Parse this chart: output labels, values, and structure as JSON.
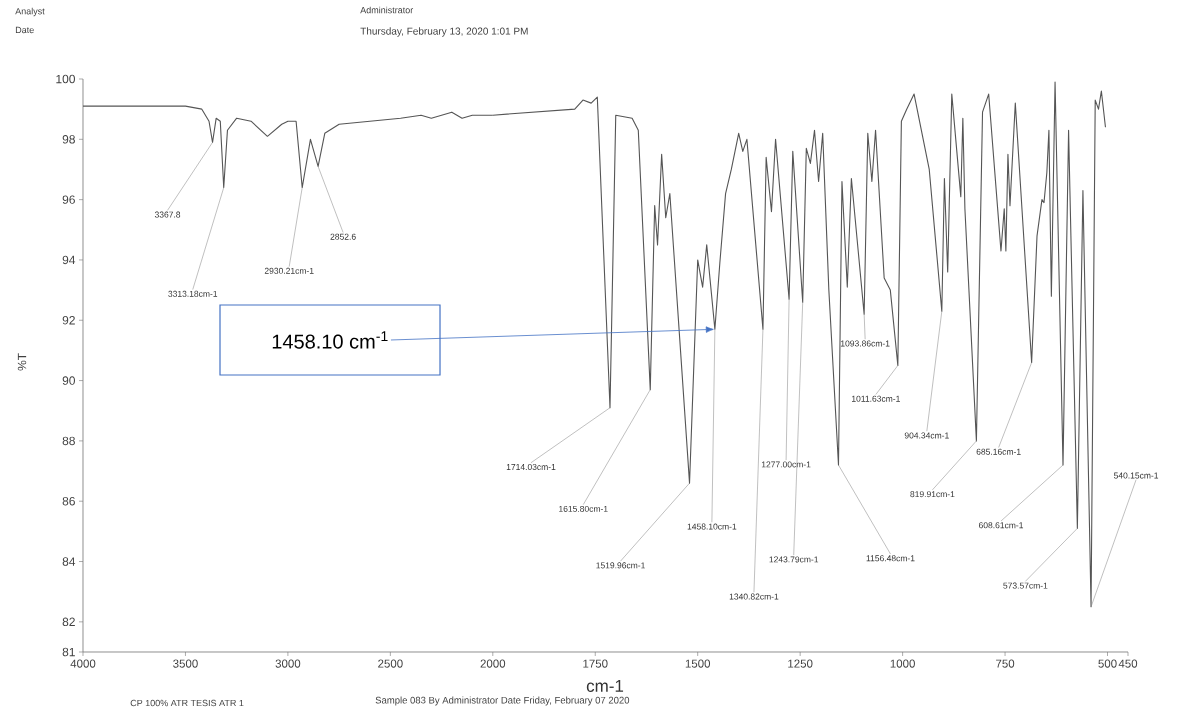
{
  "chart_data": [
    {
      "type": "line",
      "ylabel": "%T",
      "x": [
        4000,
        3700,
        3500,
        3420,
        3385,
        3367.8,
        3350,
        3330,
        3313.18,
        3295,
        3250,
        3180,
        3100,
        3030,
        3000,
        2960,
        2930.21,
        2890,
        2852.6,
        2820,
        2750,
        2600,
        2450,
        2350,
        2300,
        2250,
        2200,
        2150,
        2100,
        2000
      ],
      "values": [
        99.1,
        99.1,
        99.1,
        99.0,
        98.6,
        97.9,
        98.7,
        98.6,
        96.4,
        98.3,
        98.7,
        98.6,
        98.1,
        98.5,
        98.6,
        98.6,
        96.4,
        98.0,
        97.1,
        98.2,
        98.5,
        98.6,
        98.7,
        98.8,
        98.7,
        98.8,
        98.9,
        98.7,
        98.8,
        98.8
      ],
      "color": "#555555",
      "xlim": [
        4000,
        2000
      ],
      "xticks": [
        4000,
        3500,
        3000,
        2500,
        2000
      ],
      "ylim": [
        81,
        100
      ],
      "yticks": [
        81,
        82,
        84,
        86,
        88,
        90,
        92,
        94,
        96,
        98,
        100
      ],
      "annotations": [
        {
          "text": "3367.8",
          "x": 3367.8,
          "y": 97.9
        },
        {
          "text": "3313.18cm-1",
          "x": 3313.18,
          "y": 96.4
        },
        {
          "text": "2930.21cm-1",
          "x": 2930.21,
          "y": 96.4
        },
        {
          "text": "2852.6",
          "x": 2852.6,
          "y": 97.1
        },
        "Analyst",
        "Date",
        "Administrator",
        "Thursday, February 13, 2020 1:01 PM",
        "CP 100% ATR TESIS ATR 1",
        "Sample 083 By Administrator Date Friday, February 07 2020"
      ]
    },
    {
      "type": "line",
      "xlabel": "cm-1",
      "tick_labels": "x",
      "x": [
        2000,
        1900,
        1800,
        1780,
        1760,
        1745,
        1714.03,
        1700,
        1660,
        1645,
        1615.8,
        1605,
        1598,
        1588,
        1578,
        1568,
        1519.96,
        1500,
        1488,
        1478,
        1458.1,
        1446,
        1432,
        1418,
        1400,
        1390,
        1380,
        1340.82,
        1333,
        1320,
        1310,
        1277.0,
        1268,
        1243.79,
        1235,
        1225,
        1215,
        1205,
        1195,
        1180,
        1156.48,
        1148,
        1135,
        1125,
        1093.86,
        1085,
        1075,
        1066,
        1045,
        1030,
        1011.63,
        1003,
        990,
        972,
        935,
        904.34,
        898,
        890,
        880,
        858,
        853,
        848,
        819.91,
        805,
        790,
        760,
        752,
        748,
        743,
        738,
        725,
        685.16,
        672,
        660,
        655,
        648,
        643,
        637,
        628,
        608.61,
        595,
        573.57,
        560,
        540.15,
        530,
        522,
        515,
        505
      ],
      "values": [
        98.8,
        98.9,
        99.0,
        99.3,
        99.2,
        99.4,
        89.1,
        98.8,
        98.7,
        98.3,
        89.7,
        95.8,
        94.5,
        97.5,
        95.4,
        96.2,
        86.6,
        94.0,
        93.1,
        94.5,
        91.7,
        93.9,
        96.2,
        97.0,
        98.2,
        97.6,
        98.0,
        91.7,
        97.4,
        95.6,
        98.0,
        92.7,
        97.6,
        92.6,
        97.7,
        97.2,
        98.3,
        96.6,
        98.2,
        93.0,
        87.2,
        96.6,
        93.1,
        96.7,
        92.2,
        98.2,
        96.6,
        98.3,
        93.4,
        93.0,
        90.5,
        98.6,
        99.0,
        99.5,
        97.0,
        92.3,
        96.7,
        93.6,
        99.5,
        96.1,
        98.7,
        95.7,
        88.0,
        98.9,
        99.5,
        94.3,
        95.7,
        94.3,
        97.5,
        95.8,
        99.2,
        90.6,
        94.8,
        96.0,
        95.9,
        96.9,
        98.3,
        92.8,
        99.9,
        87.2,
        98.3,
        85.1,
        96.3,
        82.5,
        99.3,
        99.0,
        99.6,
        98.4
      ],
      "color": "#555555",
      "xlim": [
        2000,
        450
      ],
      "xticks": [
        1750,
        1500,
        1250,
        1000,
        750,
        500,
        450
      ],
      "ylim": [
        81,
        100
      ],
      "annotations": [
        {
          "text": "1458.10 cm$^{-1}$",
          "x": 1458.1,
          "y": 91.7
        },
        {
          "text": "1714.03cm-1",
          "x": 1714.03,
          "y": 89.1
        },
        {
          "text": "1615.80cm-1",
          "x": 1615.8,
          "y": 89.7
        },
        {
          "text": "1519.96cm-1",
          "x": 1519.96,
          "y": 86.6
        },
        {
          "text": "1458.10cm-1",
          "x": 1458.1,
          "y": 91.7
        },
        {
          "text": "1340.82cm-1",
          "x": 1340.82,
          "y": 91.7
        },
        {
          "text": "1277.00cm-1",
          "x": 1277.0,
          "y": 92.7
        },
        {
          "text": "1243.79cm-1",
          "x": 1243.79,
          "y": 92.6
        },
        {
          "text": "1156.48cm-1",
          "x": 1156.48,
          "y": 87.2
        },
        {
          "text": "1093.86cm-1",
          "x": 1093.86,
          "y": 92.2
        },
        {
          "text": "1011.63cm-1",
          "x": 1011.63,
          "y": 90.5
        },
        {
          "text": "904.34cm-1",
          "x": 904.34,
          "y": 92.3
        },
        {
          "text": "819.91cm-1",
          "x": 819.91,
          "y": 88.0
        },
        {
          "text": "685.16cm-1",
          "x": 685.16,
          "y": 90.6
        },
        {
          "text": "608.61cm-1",
          "x": 608.61,
          "y": 87.2
        },
        {
          "text": "573.57cm-1",
          "x": 573.57,
          "y": 85.1
        },
        {
          "text": "540.15cm-1",
          "x": 540.15,
          "y": 82.5
        }
      ]
    }
  ]
}
